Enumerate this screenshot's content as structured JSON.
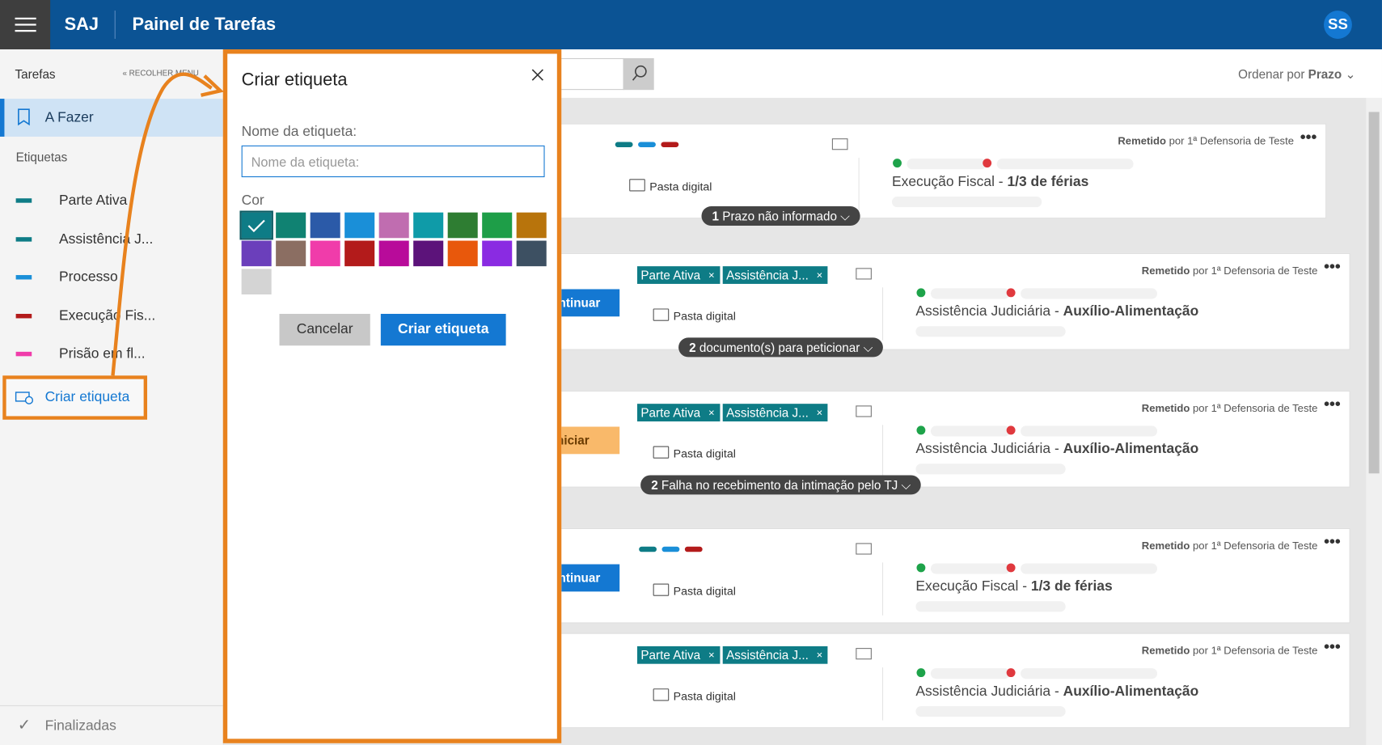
{
  "header": {
    "app": "SAJ",
    "title": "Painel de Tarefas",
    "avatar": "SS"
  },
  "sidebar": {
    "title": "Tarefas",
    "collapse": "RECOLHER MENU",
    "todo": "A Fazer",
    "labels_heading": "Etiquetas",
    "labels": [
      {
        "name": "Parte Ativa",
        "color": "#0e7c86"
      },
      {
        "name": "Assistência J...",
        "color": "#0e7c86"
      },
      {
        "name": "Processo",
        "color": "#1a8fd8"
      },
      {
        "name": "Execução Fis...",
        "color": "#b31b1b"
      },
      {
        "name": "Prisão em fl...",
        "color": "#f03caa"
      }
    ],
    "create": "Criar etiqueta",
    "done": "Finalizadas"
  },
  "toolbar": {
    "sort_label": "Ordenar por",
    "sort_value": "Prazo"
  },
  "dialog": {
    "title": "Criar etiqueta",
    "name_label": "Nome da etiqueta:",
    "name_placeholder": "Nome da etiqueta:",
    "color_label": "Cor",
    "colors": [
      "#0e7c86",
      "#108272",
      "#2b5aa8",
      "#1a8fd8",
      "#c06db0",
      "#0f9ba8",
      "#2e7d32",
      "#1e9e48",
      "#b8740c",
      "#6b3fbb",
      "#8b6e62",
      "#f03caa",
      "#b31b1b",
      "#b80b9a",
      "#5c137a",
      "#e8580c",
      "#8a2be2",
      "#3d5062",
      "#d4d4d4"
    ],
    "cancel": "Cancelar",
    "submit": "Criar etiqueta"
  },
  "tasks": [
    {
      "dots": [
        "#0e7c86",
        "#1a8fd8",
        "#b31b1b"
      ],
      "folder": "Pasta digital",
      "remetido": "Remetido",
      "por": "por 1ª Defensoria de Teste",
      "subject": "Execução Fiscal",
      "detail": "1/3 de férias",
      "pill_count": "1",
      "pill_text": "Prazo não informado"
    },
    {
      "button": "Continuar",
      "tags": [
        "Parte Ativa",
        "Assistência J..."
      ],
      "folder": "Pasta digital",
      "remetido": "Remetido",
      "por": "por 1ª Defensoria de Teste",
      "subject": "Assistência Judiciária",
      "detail": "Auxílio-Alimentação",
      "pill_count": "2",
      "pill_text": "documento(s) para peticionar"
    },
    {
      "button": "Iniciar",
      "tags": [
        "Parte Ativa",
        "Assistência J..."
      ],
      "folder": "Pasta digital",
      "remetido": "Remetido",
      "por": "por 1ª Defensoria de Teste",
      "subject": "Assistência Judiciária",
      "detail": "Auxílio-Alimentação",
      "pill_count": "2",
      "pill_text": "Falha no recebimento da intimação pelo TJ"
    },
    {
      "button": "Continuar",
      "dots": [
        "#0e7c86",
        "#1a8fd8",
        "#b31b1b"
      ],
      "folder": "Pasta digital",
      "remetido": "Remetido",
      "por": "por 1ª Defensoria de Teste",
      "subject": "Execução Fiscal",
      "detail": "1/3 de férias"
    },
    {
      "tags": [
        "Parte Ativa",
        "Assistência J..."
      ],
      "folder": "Pasta digital",
      "remetido": "Remetido",
      "por": "por 1ª Defensoria de Teste",
      "subject": "Assistência Judiciária",
      "detail": "Auxílio-Alimentação"
    }
  ]
}
